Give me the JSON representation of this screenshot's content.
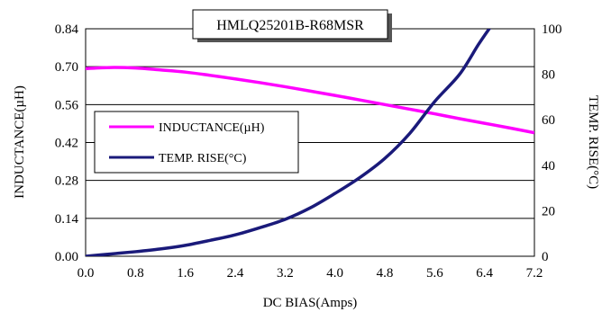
{
  "chart_data": {
    "type": "line",
    "title": "HMLQ25201B-R68MSR",
    "xlabel": "DC BIAS(Amps)",
    "ylabel": "INDUCTANCE(µH)",
    "y2label": "TEMP. RISE(°C)",
    "xlim": [
      0,
      7.2
    ],
    "ylim": [
      0,
      0.84
    ],
    "y2lim": [
      0,
      100
    ],
    "x_ticks": [
      "0.0",
      "0.8",
      "1.6",
      "2.4",
      "3.2",
      "4.0",
      "4.8",
      "5.6",
      "6.4",
      "7.2"
    ],
    "y_ticks": [
      "0.00",
      "0.14",
      "0.28",
      "0.42",
      "0.56",
      "0.70",
      "0.84"
    ],
    "y2_ticks": [
      "0",
      "20",
      "40",
      "60",
      "80",
      "100"
    ],
    "grid": "horizontal",
    "legend_position": "left",
    "series": [
      {
        "name": "INDUCTANCE(µH)",
        "axis": "left",
        "color": "#ff00ff",
        "x": [
          0,
          0.4,
          0.8,
          1.2,
          1.6,
          2.0,
          2.4,
          2.8,
          3.2,
          3.6,
          4.0,
          4.4,
          4.8,
          5.2,
          5.6,
          6.0,
          6.4,
          6.8,
          7.2
        ],
        "y": [
          0.693,
          0.697,
          0.695,
          0.688,
          0.68,
          0.668,
          0.655,
          0.641,
          0.626,
          0.61,
          0.594,
          0.577,
          0.56,
          0.543,
          0.526,
          0.508,
          0.491,
          0.474,
          0.456
        ]
      },
      {
        "name": "TEMP. RISE(°C)",
        "axis": "right",
        "color": "#1a1a7a",
        "x": [
          0,
          0.4,
          0.8,
          1.2,
          1.6,
          2.0,
          2.4,
          2.8,
          3.2,
          3.6,
          4.0,
          4.4,
          4.8,
          5.2,
          5.6,
          6.0,
          6.3,
          6.5
        ],
        "y": [
          0,
          1.0,
          2.0,
          3.2,
          4.8,
          7.0,
          9.4,
          12.6,
          16.2,
          21.2,
          27.6,
          34.6,
          43.0,
          54.0,
          68.0,
          80.0,
          93.0,
          101
        ]
      }
    ]
  }
}
